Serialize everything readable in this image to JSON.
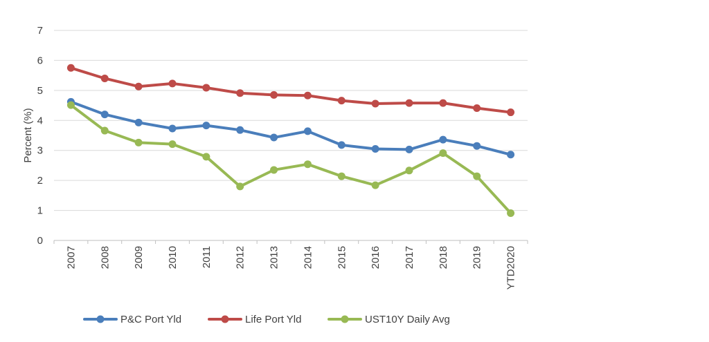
{
  "chart_data": {
    "type": "line",
    "title": "",
    "xlabel": "",
    "ylabel": "Percent (%)",
    "ylim": [
      0,
      7
    ],
    "yticks": [
      "0",
      "1",
      "2",
      "3",
      "4",
      "5",
      "6",
      "7"
    ],
    "grid": true,
    "legend_position": "bottom",
    "categories": [
      "2007",
      "2008",
      "2009",
      "2010",
      "2011",
      "2012",
      "2013",
      "2014",
      "2015",
      "2016",
      "2017",
      "2018",
      "2019",
      "YTD2020"
    ],
    "series": [
      {
        "name": "P&C Port Yld",
        "color": "#4a7ebb",
        "values": [
          4.62,
          4.2,
          3.93,
          3.73,
          3.83,
          3.68,
          3.43,
          3.64,
          3.18,
          3.05,
          3.03,
          3.36,
          3.15,
          2.86
        ]
      },
      {
        "name": "Life Port Yld",
        "color": "#be4b48",
        "values": [
          5.75,
          5.4,
          5.13,
          5.23,
          5.09,
          4.91,
          4.85,
          4.83,
          4.66,
          4.56,
          4.58,
          4.58,
          4.41,
          4.27
        ]
      },
      {
        "name": "UST10Y Daily Avg",
        "color": "#98b954",
        "values": [
          4.51,
          3.66,
          3.26,
          3.21,
          2.79,
          1.8,
          2.35,
          2.54,
          2.14,
          1.84,
          2.33,
          2.91,
          2.14,
          0.91
        ]
      }
    ]
  }
}
